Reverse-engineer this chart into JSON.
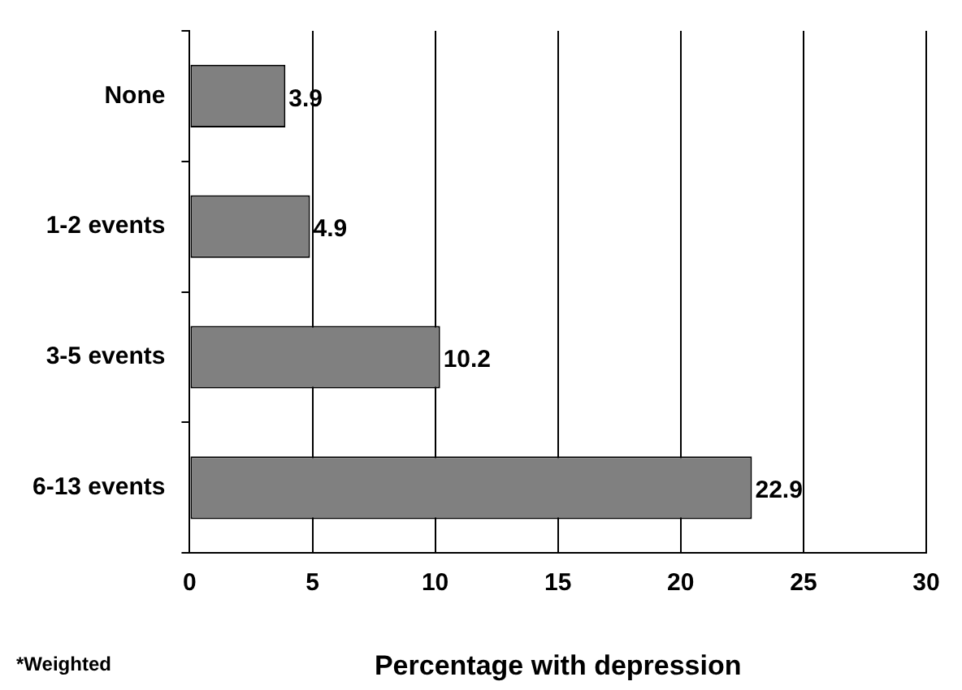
{
  "chart_data": {
    "type": "bar",
    "orientation": "horizontal",
    "categories": [
      "None",
      "1-2 events",
      "3-5 events",
      "6-13 events"
    ],
    "values": [
      3.9,
      4.9,
      10.2,
      22.9
    ],
    "color": "#808080",
    "xlim": [
      0,
      30
    ],
    "xticks": [
      0,
      5,
      10,
      15,
      20,
      25,
      30
    ],
    "xlabel": "Percentage with depression",
    "annotations": [
      "*Weighted"
    ],
    "grid": "x",
    "data_labels": true,
    "legend": false
  }
}
